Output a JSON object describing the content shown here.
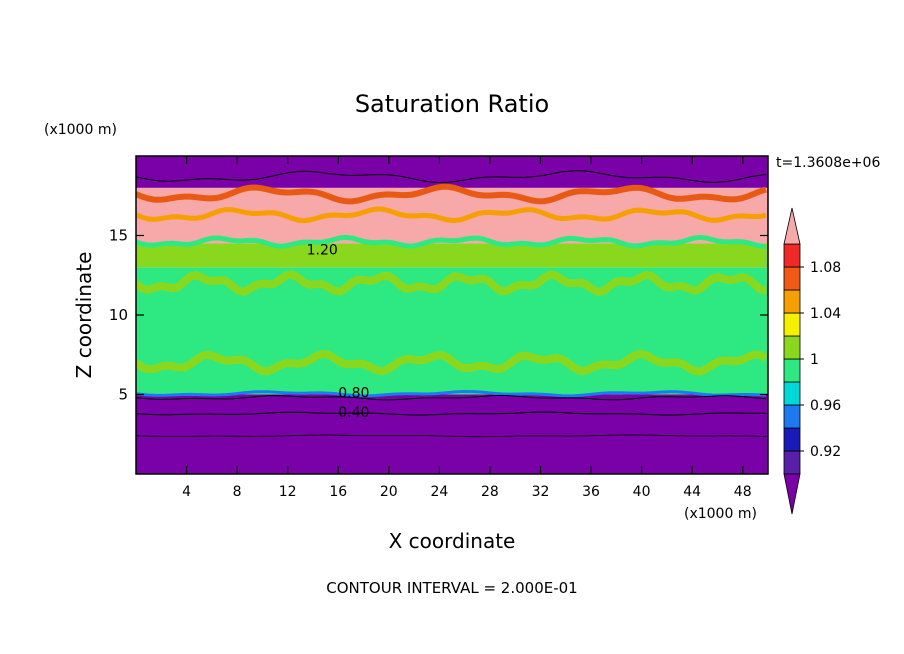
{
  "chart_data": {
    "type": "heatmap",
    "title": "Saturation Ratio",
    "xlabel": "X coordinate",
    "ylabel": "Z coordinate",
    "x_unit": "(x1000 m)",
    "y_unit": "(x1000 m)",
    "time_label": "t=1.3608e+06",
    "footer": "CONTOUR INTERVAL = 2.000E-01",
    "xlim": [
      0,
      50
    ],
    "ylim": [
      0,
      20
    ],
    "x_ticks": [
      4,
      8,
      12,
      16,
      20,
      24,
      28,
      32,
      36,
      40,
      44,
      48
    ],
    "y_ticks": [
      5,
      10,
      15
    ],
    "colorbar": {
      "labels": [
        "1.08",
        "1.04",
        "1",
        "0.96",
        "0.92"
      ],
      "label_values": [
        1.08,
        1.04,
        1.0,
        0.96,
        0.92
      ],
      "min": 0.9,
      "max": 1.1,
      "bands": [
        {
          "from": 0.9,
          "to": 0.92,
          "color": "#5a1fa8"
        },
        {
          "from": 0.92,
          "to": 0.94,
          "color": "#1a1ab8"
        },
        {
          "from": 0.94,
          "to": 0.96,
          "color": "#1e78f0"
        },
        {
          "from": 0.96,
          "to": 0.98,
          "color": "#00d8d8"
        },
        {
          "from": 0.98,
          "to": 1.0,
          "color": "#2ee882"
        },
        {
          "from": 1.0,
          "to": 1.02,
          "color": "#8ad81e"
        },
        {
          "from": 1.02,
          "to": 1.04,
          "color": "#f5f000"
        },
        {
          "from": 1.04,
          "to": 1.06,
          "color": "#f5a000"
        },
        {
          "from": 1.06,
          "to": 1.08,
          "color": "#f05a14"
        },
        {
          "from": 1.08,
          "to": 1.1,
          "color": "#f02828"
        },
        {
          "from": 1.1,
          "to": 1.12,
          "color": "#f7a8a8"
        }
      ],
      "below_color": "#7a00a8",
      "above_color": "#f7a8a8"
    },
    "layers": [
      {
        "z_from": 0.0,
        "z_to": 5.0,
        "value": 0.4,
        "color": "#7a00a8"
      },
      {
        "z_from": 5.0,
        "z_to": 13.0,
        "value": 1.0,
        "color": "#2ee882"
      },
      {
        "z_from": 13.0,
        "z_to": 14.5,
        "value": 1.01,
        "color": "#8ad81e"
      },
      {
        "z_from": 14.5,
        "z_to": 18.0,
        "value": 1.12,
        "color": "#f7a8a8"
      },
      {
        "z_from": 18.0,
        "z_to": 20.0,
        "value": 0.5,
        "color": "#7a00a8"
      }
    ],
    "contour_labels": [
      {
        "text": "1.20",
        "x": 13.5,
        "z": 13.8
      },
      {
        "text": "0.80",
        "x": 16.0,
        "z": 4.8
      },
      {
        "text": "0.40",
        "x": 16.0,
        "z": 3.6
      }
    ]
  }
}
